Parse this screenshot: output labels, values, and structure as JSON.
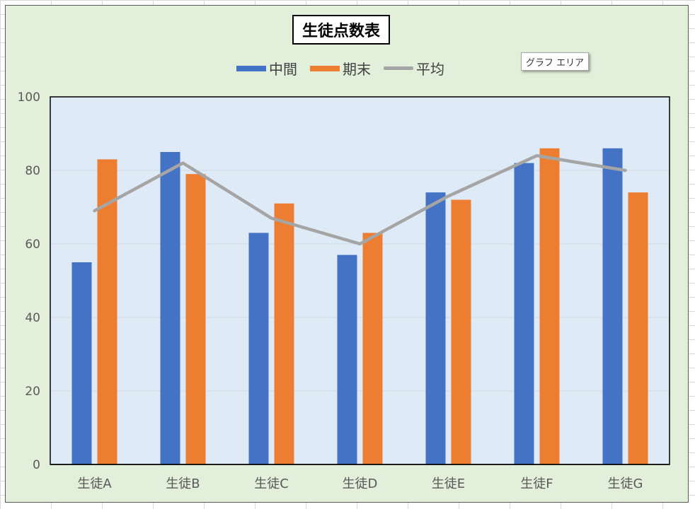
{
  "chart_data": {
    "type": "bar",
    "title": "生徒点数表",
    "categories": [
      "生徒A",
      "生徒B",
      "生徒C",
      "生徒D",
      "生徒E",
      "生徒F",
      "生徒G"
    ],
    "series": [
      {
        "name": "中間",
        "type": "bar",
        "color": "#4472c4",
        "values": [
          55,
          85,
          63,
          57,
          74,
          82,
          86
        ]
      },
      {
        "name": "期末",
        "type": "bar",
        "color": "#ed7d31",
        "values": [
          83,
          79,
          71,
          63,
          72,
          86,
          74
        ]
      },
      {
        "name": "平均",
        "type": "line",
        "color": "#a5a5a5",
        "values": [
          69,
          82,
          67,
          60,
          73,
          84,
          80
        ]
      }
    ],
    "ylim": [
      0,
      100
    ],
    "yticks": [
      0,
      20,
      40,
      60,
      80,
      100
    ],
    "grid": true,
    "legend_position": "top",
    "plot_background": "#deebf7",
    "chart_background": "#e2efda"
  },
  "tooltip": {
    "text": "グラフ エリア"
  }
}
